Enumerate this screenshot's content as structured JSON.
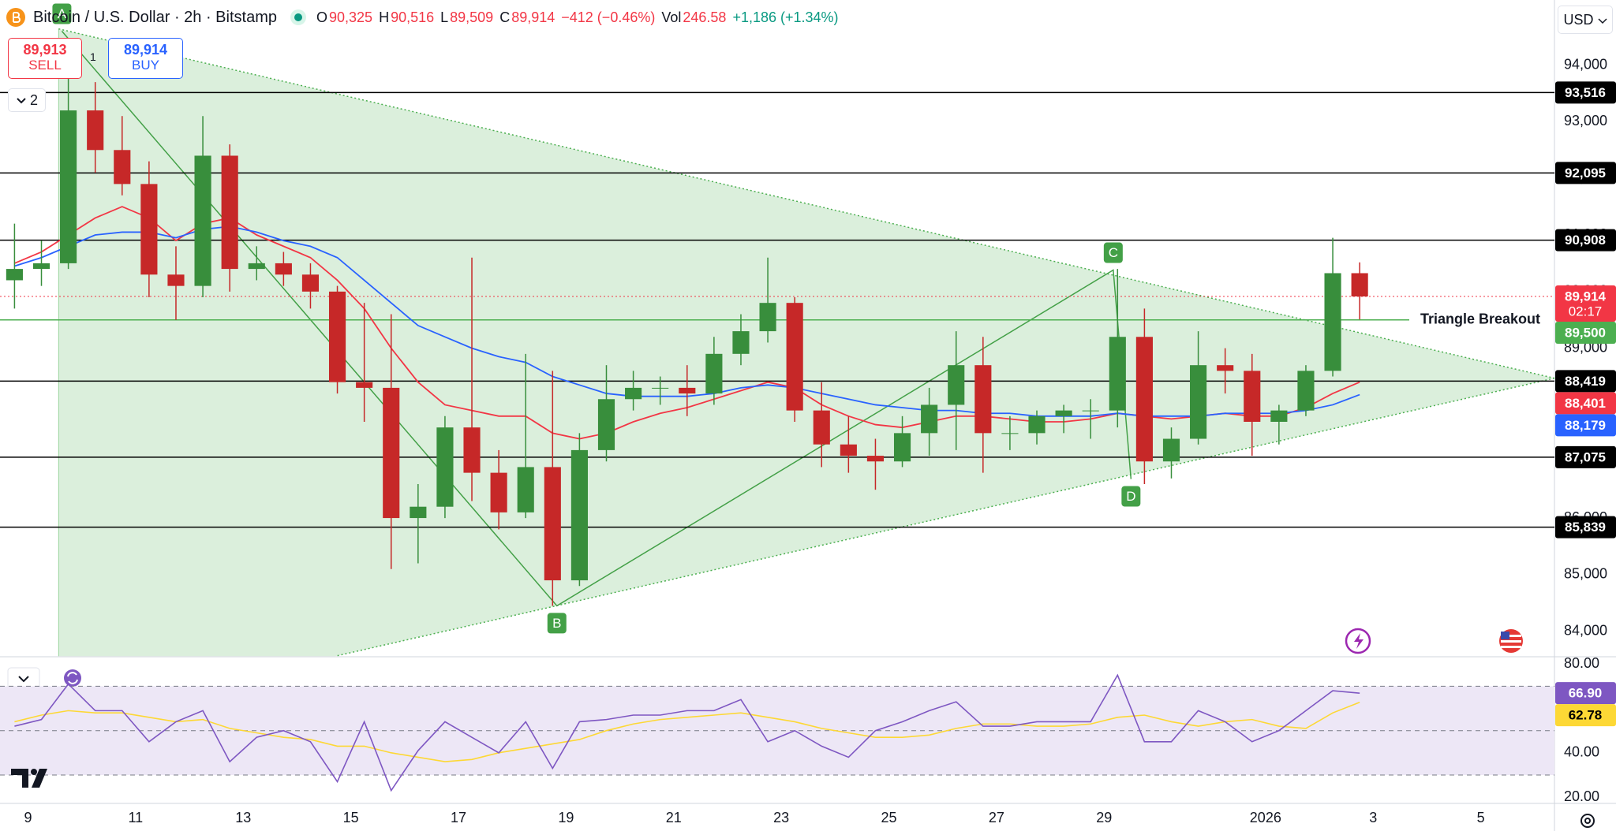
{
  "header": {
    "symbol": "Bitcoin / U.S. Dollar · 2h · Bitstamp",
    "ohlc": [
      {
        "key": "O",
        "value": "90,325"
      },
      {
        "key": "H",
        "value": "90,516"
      },
      {
        "key": "L",
        "value": "89,509"
      },
      {
        "key": "C",
        "value": "89,914"
      }
    ],
    "change": "−412 (−0.46%)",
    "volume_key": "Vol",
    "volume": "246.58",
    "volume_change": "+1,186 (+1.34%)"
  },
  "trade": {
    "sell_price": "89,913",
    "sell_label": "SELL",
    "spread": "1",
    "buy_price": "89,914",
    "buy_label": "BUY"
  },
  "collapse_count": "2",
  "currency": "USD",
  "chart_data": [
    {
      "type": "candlestick",
      "grid": false,
      "up_color": "#388e3c",
      "down_color": "#c62828",
      "x": [
        8.75,
        9.25,
        9.75,
        10.25,
        10.75,
        11.25,
        11.75,
        12.25,
        12.75,
        13.25,
        13.75,
        14.25,
        14.75,
        15.25,
        15.75,
        16.25,
        16.75,
        17.25,
        17.75,
        18.25,
        18.75,
        19.25,
        19.75,
        20.25,
        20.75,
        21.25,
        21.75,
        22.25,
        22.75,
        23.25,
        23.75,
        24.25,
        24.75,
        25.25,
        25.75,
        26.25,
        26.75,
        27.25,
        27.75,
        28.25,
        28.75,
        29.25,
        29.75,
        30.25,
        30.75,
        31.25,
        31.75,
        32.25,
        32.75,
        33.25,
        33.75
      ],
      "candles": {
        "open": [
          90200,
          90400,
          90500,
          93200,
          92500,
          91900,
          90300,
          90100,
          92400,
          90400,
          90500,
          90300,
          90000,
          88400,
          88300,
          86000,
          86200,
          87600,
          86800,
          86100,
          86900,
          84900,
          87200,
          88100,
          88300,
          88300,
          88200,
          88900,
          89300,
          89800,
          87900,
          87300,
          87100,
          87000,
          87500,
          88000,
          88700,
          87500,
          87500,
          87800,
          87900,
          87900,
          89200,
          87000,
          87400,
          88700,
          88600,
          87700,
          87900,
          88600,
          90325
        ],
        "high": [
          91200,
          90900,
          94300,
          93700,
          93100,
          92300,
          90800,
          93100,
          92600,
          90800,
          90700,
          90500,
          90100,
          89800,
          89600,
          86600,
          87800,
          90600,
          87200,
          88900,
          88600,
          87500,
          88700,
          88600,
          88500,
          88700,
          89200,
          89600,
          90600,
          89900,
          88400,
          87800,
          87400,
          87800,
          88300,
          89300,
          89200,
          87800,
          87900,
          88000,
          88100,
          90400,
          89700,
          87600,
          89300,
          89000,
          88900,
          88000,
          88700,
          90950,
          90516
        ],
        "low": [
          89700,
          90100,
          90400,
          92100,
          91700,
          89900,
          89500,
          89900,
          90000,
          90200,
          90100,
          89700,
          88200,
          87700,
          85100,
          85200,
          86000,
          86300,
          85800,
          86000,
          84450,
          84800,
          87000,
          87900,
          88000,
          87800,
          88000,
          88700,
          89100,
          87700,
          86900,
          86800,
          86500,
          86900,
          87100,
          87200,
          86800,
          87200,
          87300,
          87500,
          87400,
          87600,
          86600,
          86700,
          87300,
          88200,
          87100,
          87300,
          87800,
          88500,
          89509
        ],
        "close": [
          90400,
          90500,
          93200,
          92500,
          91900,
          90300,
          90100,
          92400,
          90400,
          90500,
          90300,
          90000,
          88400,
          88300,
          86000,
          86200,
          87600,
          86800,
          86100,
          86900,
          84900,
          87200,
          88100,
          88300,
          88300,
          88200,
          88900,
          89300,
          89800,
          87900,
          87300,
          87100,
          87000,
          87500,
          88000,
          88700,
          87500,
          87500,
          87800,
          87900,
          87900,
          89200,
          87000,
          87400,
          88700,
          88600,
          87700,
          87900,
          88600,
          90325,
          89914
        ]
      },
      "series": [
        {
          "color": "#f23645",
          "last_label": "88,401",
          "values": [
            90500,
            90700,
            91000,
            91300,
            91500,
            91300,
            90900,
            91200,
            91300,
            91000,
            90800,
            90600,
            90200,
            89700,
            89000,
            88400,
            88000,
            87900,
            87800,
            87800,
            87500,
            87400,
            87500,
            87700,
            87850,
            87950,
            88100,
            88250,
            88400,
            88300,
            88000,
            87800,
            87650,
            87600,
            87700,
            87800,
            87800,
            87750,
            87700,
            87700,
            87750,
            87850,
            87800,
            87750,
            87800,
            87850,
            87800,
            87800,
            87950,
            88200,
            88401
          ]
        },
        {
          "color": "#2962ff",
          "last_label": "88,179",
          "values": [
            90450,
            90600,
            90800,
            91000,
            91050,
            91050,
            90950,
            91100,
            91150,
            91050,
            90900,
            90800,
            90600,
            90200,
            89800,
            89400,
            89200,
            89000,
            88850,
            88750,
            88500,
            88350,
            88200,
            88150,
            88150,
            88150,
            88200,
            88300,
            88350,
            88300,
            88200,
            88100,
            88000,
            87950,
            87900,
            87900,
            87850,
            87850,
            87800,
            87800,
            87800,
            87850,
            87800,
            87800,
            87800,
            87850,
            87850,
            87850,
            87900,
            88000,
            88179
          ]
        }
      ],
      "xlim": [
        8.48,
        37.37
      ],
      "ylim": [
        83550,
        95150
      ],
      "xticks": [
        9,
        11,
        13,
        15,
        17,
        19,
        21,
        23,
        25,
        27,
        29,
        {
          "value": 32,
          "label": "2026"
        },
        {
          "value": 34,
          "label": "3"
        },
        {
          "value": 36,
          "label": "5"
        }
      ],
      "yticks": [
        {
          "value": 84000,
          "label": "84,000"
        },
        {
          "value": 85000,
          "label": "85,000"
        },
        {
          "value": 86000,
          "label": "86,000"
        },
        {
          "value": 87000,
          "label": "87,000"
        },
        {
          "value": 88000,
          "label": "88,000"
        },
        {
          "value": 89000,
          "label": "89,000"
        },
        {
          "value": 90000,
          "label": "90,000"
        },
        {
          "value": 91000,
          "label": "91,000"
        },
        {
          "value": 92000,
          "label": "92,000"
        },
        {
          "value": 93000,
          "label": "93,000"
        },
        {
          "value": 94000,
          "label": "94,000"
        }
      ],
      "levels": [
        {
          "value": 93516,
          "label": "93,516",
          "color": "#000000"
        },
        {
          "value": 92095,
          "label": "92,095",
          "color": "#000000"
        },
        {
          "value": 90908,
          "label": "90,908",
          "color": "#000000"
        },
        {
          "value": 89500,
          "label": "89,500",
          "name": "Triangle Breakout",
          "color": "#4caf50"
        },
        {
          "value": 88419,
          "label": "88,419",
          "color": "#000000"
        },
        {
          "value": 87075,
          "label": "87,075",
          "color": "#000000"
        },
        {
          "value": 85839,
          "label": "85,839",
          "color": "#000000"
        }
      ],
      "price_line": {
        "value": 89914,
        "label": "89,914",
        "countdown": "02:17",
        "color": "#f23645"
      },
      "triangle": {
        "color": "#4caf50",
        "points": [
          [
            9.57,
            94640
          ],
          [
            37.37,
            88470
          ],
          [
            14.71,
            83560
          ],
          [
            9.57,
            83560
          ]
        ]
      },
      "pattern": {
        "color": "#43a047",
        "points": [
          {
            "label": "A",
            "x": 9.63,
            "y": 94600,
            "anchor": "above"
          },
          {
            "label": "B",
            "x": 18.83,
            "y": 84450,
            "anchor": "below"
          },
          {
            "label": "C",
            "x": 29.17,
            "y": 90380,
            "anchor": "above"
          },
          {
            "label": "D",
            "x": 29.5,
            "y": 86690,
            "anchor": "below"
          }
        ]
      }
    },
    {
      "type": "line",
      "x": [
        8.75,
        9.25,
        9.75,
        10.25,
        10.75,
        11.25,
        11.75,
        12.25,
        12.75,
        13.25,
        13.75,
        14.25,
        14.75,
        15.25,
        15.75,
        16.25,
        16.75,
        17.25,
        17.75,
        18.25,
        18.75,
        19.25,
        19.75,
        20.25,
        20.75,
        21.25,
        21.75,
        22.25,
        22.75,
        23.25,
        23.75,
        24.25,
        24.75,
        25.25,
        25.75,
        26.25,
        26.75,
        27.25,
        27.75,
        28.25,
        28.75,
        29.25,
        29.75,
        30.25,
        30.75,
        31.25,
        31.75,
        32.25,
        32.75,
        33.25,
        33.75
      ],
      "series": [
        {
          "color": "#7e57c2",
          "label_text_color": "#ffffff",
          "last_label": "66.90",
          "values": [
            52,
            55,
            71,
            59,
            59,
            45,
            54,
            59,
            36,
            47,
            50,
            45,
            27,
            54,
            23,
            41,
            54,
            47,
            40,
            54,
            33,
            54,
            55,
            57,
            57,
            59,
            59,
            64,
            45,
            50,
            43,
            38,
            50,
            54,
            59,
            63,
            52,
            52,
            54,
            54,
            54,
            75,
            45,
            45,
            59,
            54,
            45,
            50,
            59,
            68,
            66.9
          ]
        },
        {
          "color": "#fdd835",
          "label_text_color": "#000000",
          "last_label": "62.78",
          "values": [
            54,
            57,
            59,
            58,
            58,
            56,
            54,
            55,
            51,
            49,
            47,
            46,
            43,
            43,
            40,
            38,
            36,
            37,
            40,
            42,
            44,
            46,
            50,
            53,
            55,
            56,
            57,
            58,
            56,
            54,
            51,
            49,
            47,
            47,
            48,
            51,
            53,
            53,
            52,
            52,
            53,
            56,
            57,
            54,
            52,
            54,
            55,
            52,
            51,
            58,
            62.78
          ]
        }
      ],
      "xlim": [
        8.48,
        37.37
      ],
      "ylim": [
        17.2,
        83.3
      ],
      "yticks": [
        {
          "value": 20,
          "label": "20.00"
        },
        {
          "value": 40,
          "label": "40.00"
        },
        {
          "value": 80,
          "label": "80.00"
        }
      ],
      "band": [
        30,
        70
      ],
      "band_color": "#ede7f6",
      "levels": [
        70,
        50,
        30
      ]
    }
  ]
}
